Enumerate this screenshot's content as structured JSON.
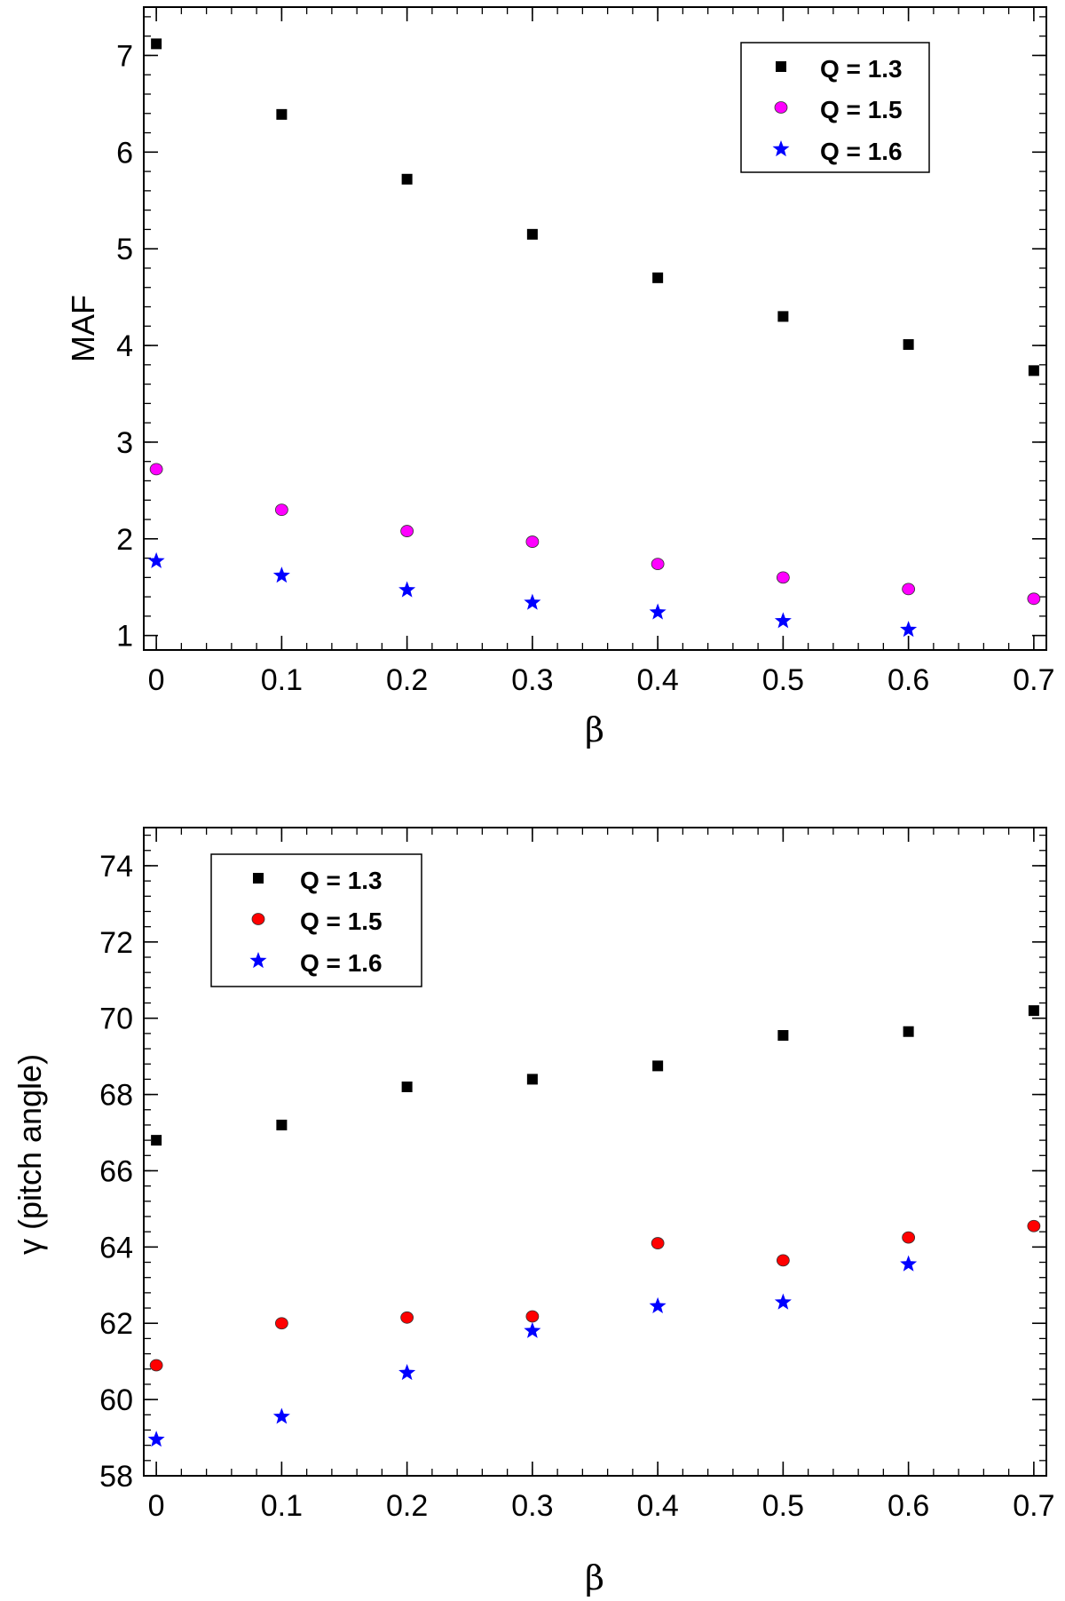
{
  "chart_data": [
    {
      "type": "scatter",
      "title": "",
      "xlabel": "β",
      "ylabel": "MAF",
      "xlim": [
        -0.01,
        0.71
      ],
      "ylim": [
        0.85,
        7.5
      ],
      "x_ticks": [
        0,
        0.1,
        0.2,
        0.3,
        0.4,
        0.5,
        0.6,
        0.7
      ],
      "x_tick_labels": [
        "0",
        "0.1",
        "0.2",
        "0.3",
        "0.4",
        "0.5",
        "0.6",
        "0.7"
      ],
      "y_ticks": [
        1,
        2,
        3,
        4,
        5,
        6,
        7
      ],
      "y_tick_labels": [
        "1",
        "2",
        "3",
        "4",
        "5",
        "6",
        "7"
      ],
      "x_minor_step": 0.02,
      "y_minor_step": 0.2,
      "grid": false,
      "legend_position": "top-right",
      "series": [
        {
          "name": "Q = 1.3",
          "marker": "square",
          "color": "#000000",
          "x": [
            0,
            0.1,
            0.2,
            0.3,
            0.4,
            0.5,
            0.6,
            0.7
          ],
          "values": [
            7.12,
            6.39,
            5.72,
            5.15,
            4.7,
            4.3,
            4.01,
            3.74
          ]
        },
        {
          "name": "Q = 1.5",
          "marker": "circle",
          "color": "#ff00ff",
          "x": [
            0,
            0.1,
            0.2,
            0.3,
            0.4,
            0.5,
            0.6,
            0.7
          ],
          "values": [
            2.72,
            2.3,
            2.08,
            1.97,
            1.74,
            1.6,
            1.48,
            1.38
          ]
        },
        {
          "name": "Q = 1.6",
          "marker": "star",
          "color": "#0000ff",
          "x": [
            0,
            0.1,
            0.2,
            0.3,
            0.4,
            0.5,
            0.6,
            0.7
          ],
          "values": [
            1.77,
            1.62,
            1.47,
            1.34,
            1.24,
            1.15,
            1.06,
            null
          ]
        }
      ]
    },
    {
      "type": "scatter",
      "title": "",
      "xlabel": "β",
      "ylabel": "γ (pitch angle)",
      "xlim": [
        -0.01,
        0.71
      ],
      "ylim": [
        58,
        75
      ],
      "x_ticks": [
        0,
        0.1,
        0.2,
        0.3,
        0.4,
        0.5,
        0.6,
        0.7
      ],
      "x_tick_labels": [
        "0",
        "0.1",
        "0.2",
        "0.3",
        "0.4",
        "0.5",
        "0.6",
        "0.7"
      ],
      "y_ticks": [
        58,
        60,
        62,
        64,
        66,
        68,
        70,
        72,
        74
      ],
      "y_tick_labels": [
        "58",
        "60",
        "62",
        "64",
        "66",
        "68",
        "70",
        "72",
        "74"
      ],
      "x_minor_step": 0.02,
      "y_minor_step": 0.4,
      "grid": false,
      "legend_position": "top-left",
      "series": [
        {
          "name": "Q = 1.3",
          "marker": "square",
          "color": "#000000",
          "x": [
            0,
            0.1,
            0.2,
            0.3,
            0.4,
            0.5,
            0.6,
            0.7
          ],
          "values": [
            66.8,
            67.2,
            68.2,
            68.4,
            68.75,
            69.55,
            69.65,
            70.2
          ]
        },
        {
          "name": "Q = 1.5",
          "marker": "circle",
          "color": "#ff0000",
          "x": [
            0,
            0.1,
            0.2,
            0.3,
            0.4,
            0.5,
            0.6,
            0.7
          ],
          "values": [
            60.9,
            62.0,
            62.15,
            62.18,
            64.1,
            63.65,
            64.25,
            64.55
          ]
        },
        {
          "name": "Q = 1.6",
          "marker": "star",
          "color": "#0000ff",
          "x": [
            0,
            0.1,
            0.2,
            0.3,
            0.4,
            0.5,
            0.6,
            0.7
          ],
          "values": [
            58.95,
            59.55,
            60.7,
            61.8,
            62.45,
            62.55,
            63.55,
            null
          ]
        }
      ]
    }
  ]
}
